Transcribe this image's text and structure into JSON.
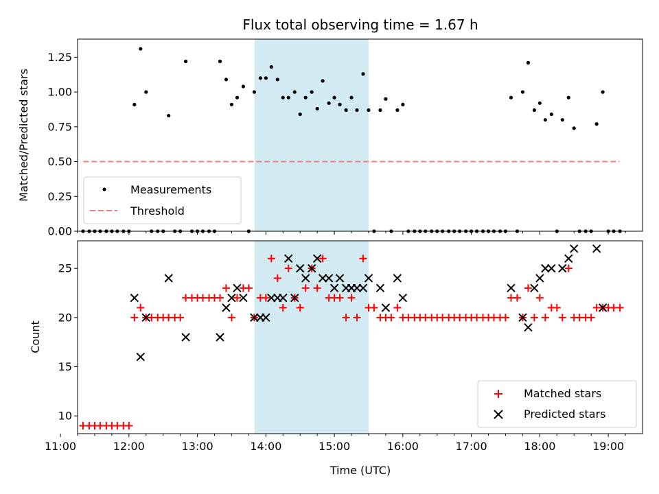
{
  "chart_data": [
    {
      "type": "scatter",
      "title": "Flux total observing time = 1.67 h",
      "xlabel": "",
      "ylabel": "Matched/Predicted stars",
      "ylim": [
        0,
        1.38
      ],
      "yticks": [
        "0.00",
        "0.25",
        "0.50",
        "0.75",
        "1.00",
        "1.25"
      ],
      "ytick_values": [
        0,
        0.25,
        0.5,
        0.75,
        1.0,
        1.25
      ],
      "highlight_span": {
        "start": 13.833,
        "end": 15.5
      },
      "legend": {
        "placement": "lower-left",
        "entries": [
          "Measurements",
          "Threshold"
        ]
      },
      "threshold": {
        "name": "Threshold",
        "x": [
          11.333,
          19.167
        ],
        "y": 0.5,
        "color": "#f08080"
      },
      "series": [
        {
          "name": "Measurements",
          "color": "#000000",
          "points": [
            [
              11.33,
              0
            ],
            [
              11.42,
              0
            ],
            [
              11.5,
              0
            ],
            [
              11.58,
              0
            ],
            [
              11.67,
              0
            ],
            [
              11.75,
              0
            ],
            [
              11.83,
              0
            ],
            [
              11.92,
              0
            ],
            [
              12.0,
              0
            ],
            [
              12.08,
              0.91
            ],
            [
              12.17,
              1.31
            ],
            [
              12.25,
              1.0
            ],
            [
              12.33,
              0
            ],
            [
              12.42,
              0
            ],
            [
              12.5,
              0
            ],
            [
              12.58,
              0.83
            ],
            [
              12.67,
              0
            ],
            [
              12.75,
              0
            ],
            [
              12.83,
              1.22
            ],
            [
              12.92,
              0
            ],
            [
              13.0,
              0
            ],
            [
              13.08,
              0
            ],
            [
              13.17,
              0
            ],
            [
              13.25,
              0
            ],
            [
              13.33,
              1.22
            ],
            [
              13.42,
              1.09
            ],
            [
              13.5,
              0.91
            ],
            [
              13.58,
              0.96
            ],
            [
              13.67,
              1.04
            ],
            [
              13.75,
              0
            ],
            [
              13.83,
              1.0
            ],
            [
              13.92,
              1.1
            ],
            [
              14.0,
              1.1
            ],
            [
              14.08,
              1.18
            ],
            [
              14.17,
              1.09
            ],
            [
              14.25,
              0.96
            ],
            [
              14.33,
              0.96
            ],
            [
              14.42,
              1.0
            ],
            [
              14.5,
              0.84
            ],
            [
              14.58,
              0.96
            ],
            [
              14.67,
              1.0
            ],
            [
              14.75,
              0.88
            ],
            [
              14.83,
              1.08
            ],
            [
              14.92,
              0.92
            ],
            [
              15.0,
              0.96
            ],
            [
              15.08,
              0.91
            ],
            [
              15.17,
              0.87
            ],
            [
              15.25,
              0.96
            ],
            [
              15.33,
              0.87
            ],
            [
              15.42,
              1.13
            ],
            [
              15.5,
              0.87
            ],
            [
              15.58,
              0
            ],
            [
              15.67,
              0.87
            ],
            [
              15.75,
              0.95
            ],
            [
              15.83,
              0
            ],
            [
              15.92,
              0.87
            ],
            [
              16.0,
              0.91
            ],
            [
              16.08,
              0
            ],
            [
              16.17,
              0
            ],
            [
              16.25,
              0
            ],
            [
              16.33,
              0
            ],
            [
              16.42,
              0
            ],
            [
              16.5,
              0
            ],
            [
              16.58,
              0
            ],
            [
              16.67,
              0
            ],
            [
              16.75,
              0
            ],
            [
              16.83,
              0
            ],
            [
              16.92,
              0
            ],
            [
              17.0,
              0
            ],
            [
              17.08,
              0
            ],
            [
              17.17,
              0
            ],
            [
              17.25,
              0
            ],
            [
              17.33,
              0
            ],
            [
              17.42,
              0
            ],
            [
              17.5,
              0
            ],
            [
              17.58,
              0.96
            ],
            [
              17.67,
              0
            ],
            [
              17.75,
              1.0
            ],
            [
              17.83,
              1.21
            ],
            [
              17.92,
              0.87
            ],
            [
              18.0,
              0.92
            ],
            [
              18.08,
              0.8
            ],
            [
              18.17,
              0.84
            ],
            [
              18.25,
              0
            ],
            [
              18.33,
              0.8
            ],
            [
              18.42,
              0.96
            ],
            [
              18.5,
              0.74
            ],
            [
              18.58,
              0
            ],
            [
              18.67,
              0
            ],
            [
              18.75,
              0
            ],
            [
              18.83,
              0.77
            ],
            [
              18.92,
              1.0
            ],
            [
              19.0,
              0
            ],
            [
              19.08,
              0
            ],
            [
              19.17,
              0
            ]
          ]
        }
      ]
    },
    {
      "type": "scatter",
      "title": "",
      "xlabel": "Time (UTC)",
      "ylabel": "Count",
      "xlim": [
        11.25,
        19.5
      ],
      "ylim": [
        8.2,
        27.8
      ],
      "xticks": [
        "11:00",
        "12:00",
        "13:00",
        "14:00",
        "15:00",
        "16:00",
        "17:00",
        "18:00",
        "19:00"
      ],
      "xtick_values": [
        11,
        12,
        13,
        14,
        15,
        16,
        17,
        18,
        19
      ],
      "yticks": [
        "10",
        "15",
        "20",
        "25"
      ],
      "ytick_values": [
        10,
        15,
        20,
        25
      ],
      "highlight_span": {
        "start": 13.833,
        "end": 15.5
      },
      "legend": {
        "placement": "lower-right",
        "entries": [
          "Matched stars",
          "Predicted stars"
        ]
      },
      "series": [
        {
          "name": "Matched stars",
          "marker": "plus",
          "color": "#ff0000",
          "points": [
            [
              11.33,
              9
            ],
            [
              11.42,
              9
            ],
            [
              11.5,
              9
            ],
            [
              11.58,
              9
            ],
            [
              11.67,
              9
            ],
            [
              11.75,
              9
            ],
            [
              11.83,
              9
            ],
            [
              11.92,
              9
            ],
            [
              12.0,
              9
            ],
            [
              12.08,
              20
            ],
            [
              12.17,
              21
            ],
            [
              12.25,
              20
            ],
            [
              12.33,
              20
            ],
            [
              12.42,
              20
            ],
            [
              12.5,
              20
            ],
            [
              12.58,
              20
            ],
            [
              12.67,
              20
            ],
            [
              12.75,
              20
            ],
            [
              12.83,
              22
            ],
            [
              12.92,
              22
            ],
            [
              13.0,
              22
            ],
            [
              13.08,
              22
            ],
            [
              13.17,
              22
            ],
            [
              13.25,
              22
            ],
            [
              13.33,
              22
            ],
            [
              13.42,
              23
            ],
            [
              13.5,
              20
            ],
            [
              13.58,
              22
            ],
            [
              13.67,
              23
            ],
            [
              13.75,
              23
            ],
            [
              13.83,
              20
            ],
            [
              13.92,
              22
            ],
            [
              14.0,
              22
            ],
            [
              14.08,
              26
            ],
            [
              14.17,
              24
            ],
            [
              14.25,
              21
            ],
            [
              14.33,
              25
            ],
            [
              14.42,
              22
            ],
            [
              14.5,
              21
            ],
            [
              14.58,
              23
            ],
            [
              14.67,
              25
            ],
            [
              14.75,
              23
            ],
            [
              14.83,
              26
            ],
            [
              14.92,
              22
            ],
            [
              15.0,
              22
            ],
            [
              15.08,
              22
            ],
            [
              15.17,
              20
            ],
            [
              15.25,
              22
            ],
            [
              15.33,
              20
            ],
            [
              15.42,
              26
            ],
            [
              15.5,
              21
            ],
            [
              15.58,
              21
            ],
            [
              15.67,
              20
            ],
            [
              15.75,
              20
            ],
            [
              15.83,
              20
            ],
            [
              15.92,
              21
            ],
            [
              16.0,
              20
            ],
            [
              16.08,
              20
            ],
            [
              16.17,
              20
            ],
            [
              16.25,
              20
            ],
            [
              16.33,
              20
            ],
            [
              16.42,
              20
            ],
            [
              16.5,
              20
            ],
            [
              16.58,
              20
            ],
            [
              16.67,
              20
            ],
            [
              16.75,
              20
            ],
            [
              16.83,
              20
            ],
            [
              16.92,
              20
            ],
            [
              17.0,
              20
            ],
            [
              17.08,
              20
            ],
            [
              17.17,
              20
            ],
            [
              17.25,
              20
            ],
            [
              17.33,
              20
            ],
            [
              17.42,
              20
            ],
            [
              17.5,
              20
            ],
            [
              17.58,
              22
            ],
            [
              17.67,
              22
            ],
            [
              17.75,
              20
            ],
            [
              17.83,
              23
            ],
            [
              17.92,
              20
            ],
            [
              18.0,
              22
            ],
            [
              18.08,
              20
            ],
            [
              18.17,
              21
            ],
            [
              18.25,
              21
            ],
            [
              18.33,
              20
            ],
            [
              18.42,
              25
            ],
            [
              18.5,
              20
            ],
            [
              18.58,
              20
            ],
            [
              18.67,
              20
            ],
            [
              18.75,
              20
            ],
            [
              18.83,
              21
            ],
            [
              18.92,
              21
            ],
            [
              19.0,
              21
            ],
            [
              19.08,
              21
            ],
            [
              19.17,
              21
            ]
          ]
        },
        {
          "name": "Predicted stars",
          "marker": "x",
          "color": "#000000",
          "points": [
            [
              12.08,
              22
            ],
            [
              12.17,
              16
            ],
            [
              12.25,
              20
            ],
            [
              12.58,
              24
            ],
            [
              12.83,
              18
            ],
            [
              13.33,
              18
            ],
            [
              13.42,
              21
            ],
            [
              13.5,
              22
            ],
            [
              13.58,
              23
            ],
            [
              13.67,
              22
            ],
            [
              13.83,
              20
            ],
            [
              13.92,
              20
            ],
            [
              14.0,
              20
            ],
            [
              14.08,
              22
            ],
            [
              14.17,
              22
            ],
            [
              14.25,
              22
            ],
            [
              14.33,
              26
            ],
            [
              14.42,
              22
            ],
            [
              14.5,
              25
            ],
            [
              14.58,
              24
            ],
            [
              14.67,
              25
            ],
            [
              14.75,
              26
            ],
            [
              14.83,
              24
            ],
            [
              14.92,
              24
            ],
            [
              15.0,
              23
            ],
            [
              15.08,
              24
            ],
            [
              15.17,
              23
            ],
            [
              15.25,
              23
            ],
            [
              15.33,
              23
            ],
            [
              15.42,
              23
            ],
            [
              15.5,
              24
            ],
            [
              15.67,
              23
            ],
            [
              15.75,
              21
            ],
            [
              15.92,
              24
            ],
            [
              16.0,
              22
            ],
            [
              17.58,
              23
            ],
            [
              17.75,
              20
            ],
            [
              17.83,
              19
            ],
            [
              17.92,
              23
            ],
            [
              18.0,
              24
            ],
            [
              18.08,
              25
            ],
            [
              18.17,
              25
            ],
            [
              18.33,
              25
            ],
            [
              18.42,
              26
            ],
            [
              18.5,
              27
            ],
            [
              18.83,
              27
            ],
            [
              18.92,
              21
            ]
          ]
        }
      ]
    }
  ]
}
